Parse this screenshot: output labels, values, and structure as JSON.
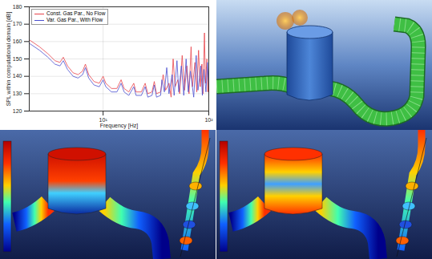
{
  "chart_data": {
    "type": "line",
    "x_label": "Frequency [Hz]",
    "y_label": "SPL within computational domain [dB]",
    "log": "x",
    "grid": true,
    "legend": "top-left",
    "xlim": [
      2,
      100
    ],
    "xticks": [
      {
        "value": 10,
        "label": "10¹"
      },
      {
        "value": 100,
        "label": "10²"
      }
    ],
    "ylim": [
      120,
      180
    ],
    "yticks": [
      120,
      130,
      140,
      150,
      160,
      170,
      180
    ],
    "series": [
      {
        "name": "Const. Gas Par., No Flow",
        "color": "#e8434a",
        "x": [
          2,
          2.5,
          3,
          3.5,
          3.9,
          4.2,
          4.6,
          5.2,
          5.8,
          6.4,
          6.8,
          7.3,
          8.2,
          9.2,
          10,
          10.6,
          12,
          13.5,
          14.8,
          15.8,
          17.5,
          19.5,
          20.5,
          23,
          25,
          26.5,
          29,
          30.5,
          32,
          35,
          37,
          39,
          42,
          44,
          46,
          48,
          51,
          53,
          56,
          59,
          62,
          65,
          68,
          70,
          74,
          77,
          80,
          83,
          86,
          88,
          91,
          93,
          96,
          98,
          100
        ],
        "values": [
          161,
          157,
          153,
          149,
          148,
          151,
          146,
          142,
          141,
          143,
          147,
          141,
          137,
          136,
          140,
          136,
          133,
          133,
          138,
          133,
          131,
          136,
          131,
          131,
          136,
          130,
          131,
          137,
          130,
          131,
          141,
          132,
          136,
          128,
          150,
          134,
          138,
          130,
          152,
          132,
          146,
          130,
          157,
          134,
          148,
          131,
          155,
          134,
          147,
          130,
          165,
          136,
          150,
          131,
          145
        ]
      },
      {
        "name": "Var. Gas Par., With Flow",
        "color": "#4a4fd0",
        "x": [
          2,
          2.5,
          3,
          3.5,
          3.9,
          4.2,
          4.6,
          5.2,
          5.8,
          6.4,
          6.8,
          7.3,
          8.2,
          9.2,
          10,
          10.6,
          12,
          13.5,
          14.8,
          15.8,
          17.5,
          19.5,
          20.5,
          23,
          25,
          26.5,
          29,
          30.5,
          32,
          35,
          36,
          38,
          40,
          42,
          45,
          47,
          50,
          52,
          55,
          58,
          61,
          64,
          67,
          72,
          76,
          79,
          84,
          87,
          90,
          94,
          97,
          100
        ],
        "values": [
          159,
          155,
          151,
          147,
          146,
          149,
          144,
          140,
          139,
          141,
          145,
          139,
          135,
          134,
          138,
          134,
          131,
          131,
          136,
          131,
          129,
          134,
          129,
          129,
          134,
          128,
          129,
          135,
          128,
          129,
          138,
          131,
          145,
          130,
          141,
          129,
          149,
          131,
          146,
          129,
          150,
          131,
          143,
          128,
          152,
          132,
          146,
          129,
          144,
          131,
          148,
          133
        ]
      }
    ]
  }
}
